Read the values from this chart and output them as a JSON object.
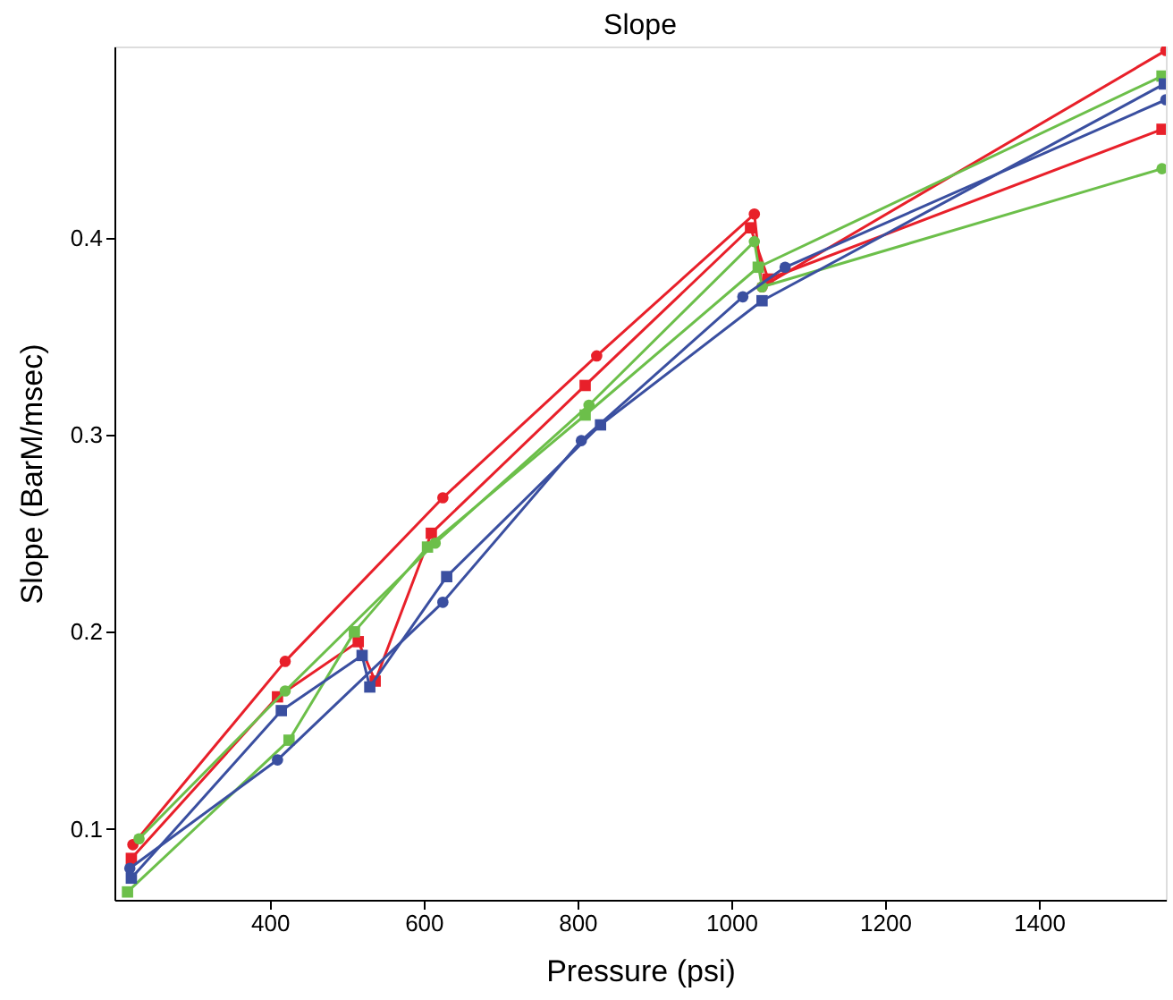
{
  "chart_data": {
    "type": "line",
    "title": "Slope",
    "xlabel": "Pressure (psi)",
    "ylabel": "Slope (BarM/msec)",
    "xlim": [
      198,
      1565
    ],
    "ylim": [
      0.064,
      0.497
    ],
    "xticks": [
      400,
      600,
      800,
      1000,
      1200,
      1400
    ],
    "yticks": [
      0.1,
      0.2,
      0.3,
      0.4
    ],
    "grid": false,
    "line_style": "solid",
    "series": [
      {
        "color": "#e8202a",
        "marker": "circle",
        "x": [
          222,
          420,
          625,
          825,
          1030,
          1040,
          1565
        ],
        "values": [
          0.092,
          0.185,
          0.268,
          0.34,
          0.412,
          0.375,
          0.495
        ]
      },
      {
        "color": "#e8202a",
        "marker": "square",
        "x": [
          220,
          410,
          515,
          537,
          610,
          810,
          1025,
          1048,
          1560
        ],
        "values": [
          0.085,
          0.167,
          0.195,
          0.175,
          0.25,
          0.325,
          0.405,
          0.379,
          0.455
        ]
      },
      {
        "color": "#6cbf4a",
        "marker": "circle",
        "x": [
          230,
          420,
          615,
          815,
          1030,
          1040,
          1560
        ],
        "values": [
          0.095,
          0.17,
          0.245,
          0.315,
          0.398,
          0.375,
          0.435
        ]
      },
      {
        "color": "#6cbf4a",
        "marker": "square",
        "x": [
          215,
          425,
          510,
          605,
          810,
          1035,
          1560
        ],
        "values": [
          0.068,
          0.145,
          0.2,
          0.243,
          0.31,
          0.385,
          0.482
        ]
      },
      {
        "color": "#3a4fa0",
        "marker": "circle",
        "x": [
          218,
          410,
          625,
          805,
          1015,
          1070,
          1565
        ],
        "values": [
          0.08,
          0.135,
          0.215,
          0.297,
          0.37,
          0.385,
          0.47
        ]
      },
      {
        "color": "#3a4fa0",
        "marker": "square",
        "x": [
          220,
          415,
          520,
          530,
          630,
          830,
          1040,
          1563
        ],
        "values": [
          0.075,
          0.16,
          0.188,
          0.172,
          0.228,
          0.305,
          0.368,
          0.478
        ]
      }
    ]
  }
}
